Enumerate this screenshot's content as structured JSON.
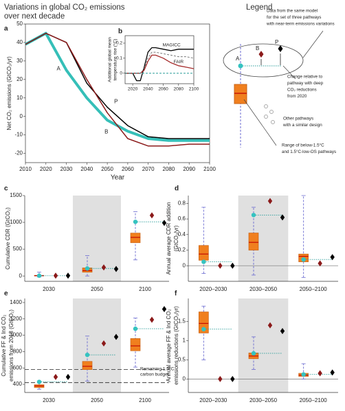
{
  "title": [
    "Variations in global CO₂ emissions",
    "over next decade"
  ],
  "legend": {
    "title": "Legend",
    "labels": [
      "A",
      "B",
      "P"
    ],
    "notes": [
      [
        "Data from the same model",
        "for the set of three pathways",
        "with near-term emissions variations"
      ],
      [
        "Change relative to",
        "pathway with deep",
        "CO₂ reductions",
        "from 2020"
      ],
      [
        "Other pathways",
        "with a similar design"
      ],
      [
        "Range of below-1.5°C",
        "and 1.5°C-low-OS pathways"
      ]
    ]
  },
  "chart_data": [
    {
      "type": "line",
      "panel": "a",
      "xlabel": "Year",
      "ylabel": [
        "Net CO₂ emissions (GtCO₂/yr)"
      ],
      "x": [
        2010,
        2020,
        2030,
        2040,
        2050,
        2060,
        2070,
        2080,
        2090,
        2100
      ],
      "xlim": [
        2010,
        2100
      ],
      "xticks": [
        2010,
        2020,
        2030,
        2040,
        2050,
        2060,
        2070,
        2080,
        2090,
        2100
      ],
      "ylim": [
        -25,
        50
      ],
      "yticks": [
        -20,
        -10,
        0,
        10,
        20,
        30,
        40,
        50
      ],
      "series": [
        {
          "name": "A",
          "color": "#35bfb8",
          "width": 4,
          "values": [
            39,
            45,
            25,
            10,
            -2,
            -8,
            -12,
            -13,
            -13,
            -13
          ]
        },
        {
          "name": "P",
          "color": "#000000",
          "width": 1.5,
          "values": [
            39,
            45,
            40,
            18,
            5,
            -5,
            -11,
            -12,
            -12,
            -12
          ]
        },
        {
          "name": "B",
          "color": "#8b1a1a",
          "width": 1.5,
          "values": [
            39,
            45,
            40,
            20,
            2,
            -12,
            -16,
            -16,
            -15,
            -15
          ]
        }
      ]
    },
    {
      "type": "line",
      "panel": "b",
      "ylabel": [
        "Additional global mean",
        "temperature rise (°C)"
      ],
      "x": [
        2010,
        2020,
        2025,
        2030,
        2035,
        2040,
        2045,
        2050,
        2060,
        2070,
        2080,
        2090,
        2100
      ],
      "xlim": [
        2010,
        2100
      ],
      "xticks": [
        2020,
        2040,
        2060,
        2080,
        2100
      ],
      "ylim": [
        -0.07,
        0.25
      ],
      "yticks": [
        0,
        0.1,
        0.2
      ],
      "series": [
        {
          "name": "MAGICC",
          "color": "#000000",
          "width": 1.3,
          "values": [
            0,
            0,
            -0.05,
            -0.05,
            0.04,
            0.14,
            0.17,
            0.17,
            0.16,
            0.15,
            0.16,
            0.16,
            0.16
          ]
        },
        {
          "name": "FAIR",
          "color": "#777777",
          "width": 1,
          "dash": true,
          "values": [
            0,
            0,
            0,
            0,
            0.03,
            0.1,
            0.14,
            0.14,
            0.13,
            0.12,
            0.11,
            0.11,
            0.1
          ]
        },
        {
          "color": "#a52a2a",
          "width": 1.3,
          "values": [
            0,
            0,
            0,
            0,
            0.02,
            0.08,
            0.12,
            0.12,
            0.1,
            0.07,
            0.05,
            0.04,
            0.03
          ]
        },
        {
          "color": "#2a9d9a",
          "width": 1,
          "dash": true,
          "values": [
            0,
            0,
            0,
            0,
            0,
            0,
            0,
            0,
            0,
            0,
            0,
            0,
            0
          ]
        }
      ]
    },
    {
      "type": "box",
      "panel": "c",
      "ylabel": [
        "Cumulative CDR (GtCO₂)"
      ],
      "categories": [
        "2030",
        "2050",
        "2100"
      ],
      "highlight": 1,
      "ylim": [
        -100,
        1500
      ],
      "yticks": [
        0,
        500,
        1000,
        1500
      ],
      "boxes": [
        {
          "whislo": -20,
          "q1": 0,
          "med": 5,
          "q3": 12,
          "whishi": 70
        },
        {
          "whislo": 0,
          "q1": 70,
          "med": 100,
          "q3": 150,
          "whishi": 380
        },
        {
          "whislo": 300,
          "q1": 620,
          "med": 720,
          "q3": 800,
          "whishi": 1200
        }
      ],
      "series": [
        {
          "marker": "circle",
          "color": "#35c3c0",
          "values": [
            5,
            140,
            1010
          ]
        },
        {
          "marker": "diamond",
          "color": "#8b1a1a",
          "values": [
            5,
            160,
            1130
          ]
        },
        {
          "marker": "diamond",
          "color": "#000000",
          "values": [
            5,
            130,
            990
          ]
        }
      ]
    },
    {
      "type": "box",
      "panel": "d",
      "ylabel": [
        "Annual average CDR addition",
        "(GtCO₂/yr)"
      ],
      "categories": [
        "2020–2030",
        "2030–2050",
        "2050–2100"
      ],
      "highlight": 1,
      "zero_line": true,
      "ylim": [
        -0.2,
        0.9
      ],
      "yticks": [
        0,
        0.2,
        0.4,
        0.6,
        0.8
      ],
      "boxes": [
        {
          "whislo": -0.1,
          "q1": 0.07,
          "med": 0.15,
          "q3": 0.26,
          "whishi": 0.75
        },
        {
          "whislo": -0.12,
          "q1": 0.2,
          "med": 0.3,
          "q3": 0.42,
          "whishi": 0.75
        },
        {
          "whislo": -0.15,
          "q1": 0.05,
          "med": 0.12,
          "q3": 0.15,
          "whishi": 0.9
        }
      ],
      "series": [
        {
          "marker": "circle",
          "color": "#35c3c0",
          "values": [
            0.05,
            0.65,
            0.08
          ]
        },
        {
          "marker": "diamond",
          "color": "#8b1a1a",
          "values": [
            0,
            0.83,
            0.03
          ]
        },
        {
          "marker": "diamond",
          "color": "#000000",
          "values": [
            0,
            0.62,
            0.11
          ]
        }
      ]
    },
    {
      "type": "box",
      "panel": "e",
      "ylabel": [
        "Cumulative FF & Ind CO₂",
        "emissions from 2018 (GtCO₂)"
      ],
      "categories": [
        "2030",
        "2050",
        "2100"
      ],
      "highlight": 1,
      "ylim": [
        300,
        1450
      ],
      "yticks": [
        400,
        600,
        800,
        1000,
        1200,
        1400
      ],
      "hlines": [
        580,
        420
      ],
      "annotation": [
        "Remaining 1.5°C",
        "carbon budget"
      ],
      "boxes": [
        {
          "whislo": 340,
          "q1": 360,
          "med": 380,
          "q3": 395,
          "whishi": 430
        },
        {
          "whislo": 440,
          "q1": 580,
          "med": 620,
          "q3": 680,
          "whishi": 990
        },
        {
          "whislo": 610,
          "q1": 810,
          "med": 870,
          "q3": 960,
          "whishi": 1210
        }
      ],
      "series": [
        {
          "marker": "circle",
          "color": "#35c3c0",
          "values": [
            430,
            760,
            1080
          ]
        },
        {
          "marker": "diamond",
          "color": "#8b1a1a",
          "values": [
            490,
            900,
            1190
          ]
        },
        {
          "marker": "diamond",
          "color": "#000000",
          "values": [
            490,
            980,
            1320
          ]
        }
      ]
    },
    {
      "type": "box",
      "panel": "f",
      "ylabel": [
        "Annual average FF & Ind CO₂",
        "emissions reductions (GtCO₂/yr)"
      ],
      "categories": [
        "2020–2030",
        "2030–2050",
        "2050–2100"
      ],
      "highlight": 1,
      "zero_line": true,
      "ylim": [
        -0.35,
        2.1
      ],
      "yticks": [
        0,
        0.5,
        1,
        1.5
      ],
      "boxes": [
        {
          "whislo": 0.5,
          "q1": 1.2,
          "med": 1.45,
          "q3": 1.75,
          "whishi": 1.9
        },
        {
          "whislo": 0.25,
          "q1": 0.53,
          "med": 0.6,
          "q3": 0.68,
          "whishi": 1.1
        },
        {
          "whislo": 0,
          "q1": 0.07,
          "med": 0.1,
          "q3": 0.15,
          "whishi": 0.4
        }
      ],
      "series": [
        {
          "marker": "circle",
          "color": "#35c3c0",
          "values": [
            1.3,
            0.67,
            0.12
          ]
        },
        {
          "marker": "diamond",
          "color": "#8b1a1a",
          "values": [
            0,
            1.4,
            0.15
          ]
        },
        {
          "marker": "diamond",
          "color": "#000000",
          "values": [
            0,
            1.25,
            0.17
          ]
        }
      ]
    }
  ]
}
